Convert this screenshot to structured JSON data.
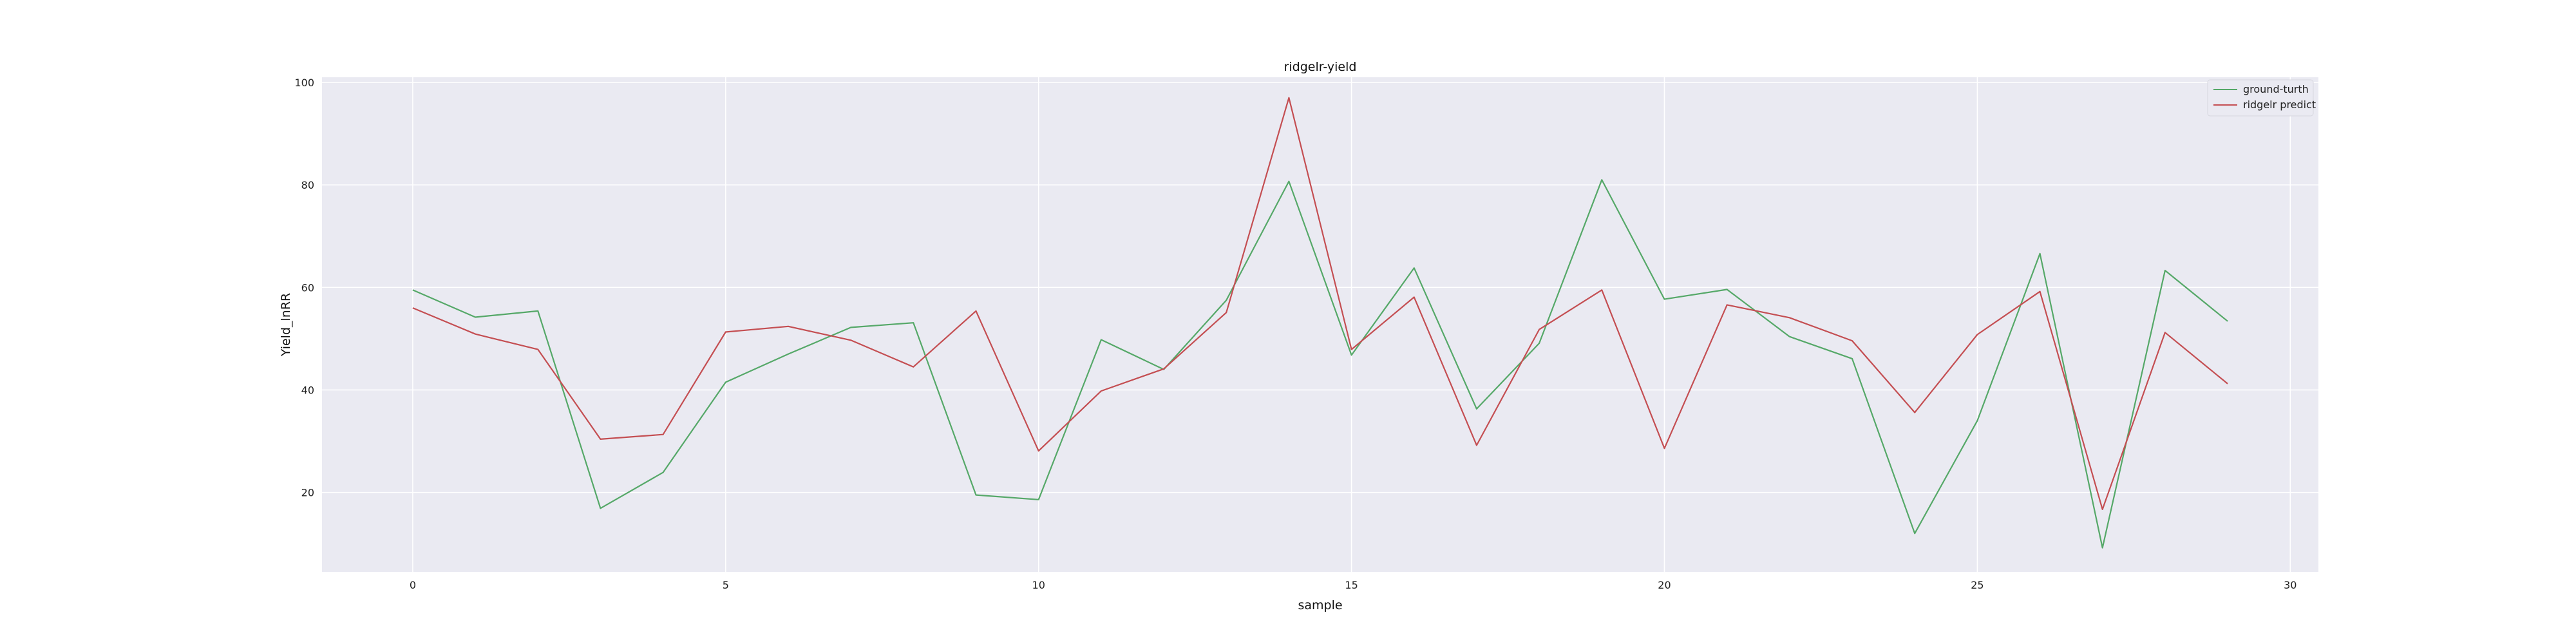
{
  "chart_data": {
    "type": "line",
    "title": "ridgelr-yield",
    "xlabel": "sample",
    "ylabel": "Yield_lnRR",
    "xlim": [
      -1.45,
      30.45
    ],
    "ylim": [
      4.5,
      101
    ],
    "xticks": [
      0,
      5,
      10,
      15,
      20,
      25,
      30
    ],
    "yticks": [
      20,
      40,
      60,
      80,
      100
    ],
    "grid": true,
    "background": "#eaeaf2",
    "legend_position": "top-right",
    "x": [
      0,
      1,
      2,
      3,
      4,
      5,
      6,
      7,
      8,
      9,
      10,
      11,
      12,
      13,
      14,
      15,
      16,
      17,
      18,
      19,
      20,
      21,
      22,
      23,
      24,
      25,
      26,
      27,
      28,
      29
    ],
    "series": [
      {
        "name": "ground-turth",
        "color": "#55a868",
        "values": [
          59.5,
          54.2,
          55.4,
          16.9,
          23.9,
          41.5,
          47,
          52.2,
          53.1,
          19.5,
          18.6,
          49.8,
          44,
          57.5,
          80.7,
          46.8,
          63.8,
          36.3,
          49.1,
          81,
          57.7,
          59.6,
          50.4,
          46.1,
          12,
          34,
          66.6,
          9.2,
          63.3,
          53.4
        ]
      },
      {
        "name": "ridgelr predict",
        "color": "#c44e52",
        "values": [
          56,
          50.9,
          47.9,
          30.4,
          31.3,
          51.3,
          52.4,
          49.7,
          44.5,
          55.4,
          28.1,
          39.8,
          44.1,
          55.1,
          97,
          47.9,
          58.1,
          29.2,
          51.8,
          59.5,
          28.6,
          56.6,
          54.1,
          49.6,
          35.6,
          50.8,
          59.2,
          16.7,
          51.2,
          41.2
        ]
      }
    ]
  }
}
